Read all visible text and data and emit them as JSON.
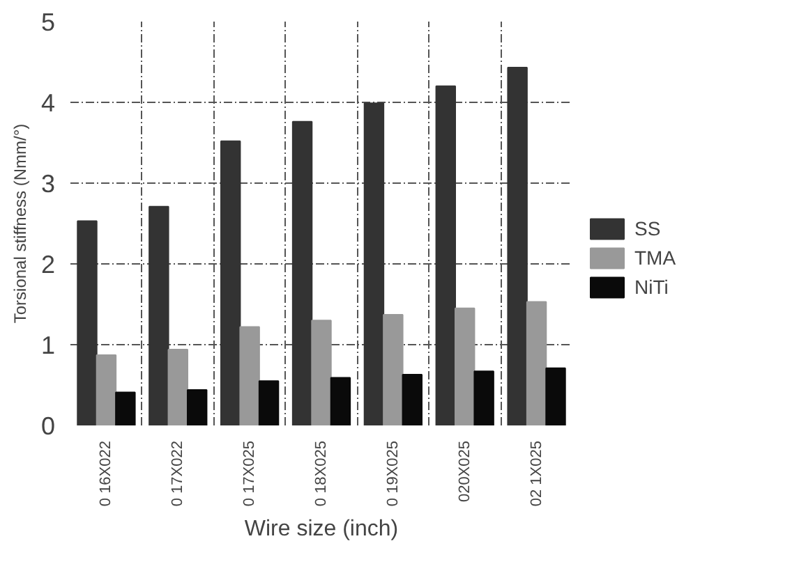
{
  "chart_data": {
    "type": "bar",
    "xlabel": "Wire size (inch)",
    "ylabel": "Torsional stiffness (Nmm/°)",
    "categories": [
      "0 16X022",
      "0 17X022",
      "0 17X025",
      "0 18X025",
      "0 19X025",
      "020X025",
      "02 1X025"
    ],
    "series": [
      {
        "name": "SS",
        "color": "#333333",
        "values": [
          2.53,
          2.71,
          3.52,
          3.76,
          3.99,
          4.2,
          4.43
        ]
      },
      {
        "name": "TMA",
        "color": "#999999",
        "values": [
          0.87,
          0.94,
          1.22,
          1.3,
          1.37,
          1.45,
          1.53
        ]
      },
      {
        "name": "NiTi",
        "color": "#0a0a0a",
        "values": [
          0.41,
          0.44,
          0.55,
          0.59,
          0.63,
          0.67,
          0.71
        ]
      }
    ],
    "ylim": [
      0,
      5
    ],
    "yticks": [
      0,
      1,
      2,
      3,
      4,
      5
    ],
    "grid": true,
    "legend": "right"
  }
}
